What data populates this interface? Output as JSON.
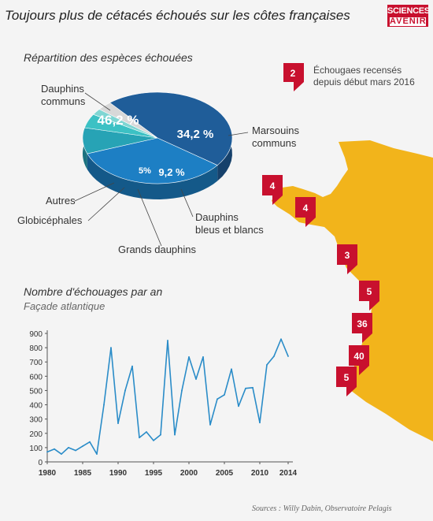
{
  "header": {
    "title": "Toujours plus de cétacés échoués sur les côtes françaises",
    "logo_line1": "SCIENCES",
    "logo_line2": "AVENIR"
  },
  "pie_section": {
    "title": "Répartition des espèces échouées"
  },
  "map_legend": {
    "count": "2",
    "line1": "Échougaes recensés",
    "line2": "depuis début mars 2016"
  },
  "map_markers": [
    {
      "value": "4"
    },
    {
      "value": "4"
    },
    {
      "value": "3"
    },
    {
      "value": "5"
    },
    {
      "value": "36"
    },
    {
      "value": "40"
    },
    {
      "value": "5"
    }
  ],
  "line_section": {
    "title": "Nombre d'échouages par an",
    "subtitle": "Façade atlantique"
  },
  "source": "Sources : Willy Dabin, Observatoire Pelagis",
  "colors": {
    "map": "#f2b41b",
    "marker": "#c8102e",
    "line": "#2a8cc8",
    "pie_dark": "#1f5d99",
    "pie_mid": "#1d7fc4",
    "pie_teal": "#27a3b5",
    "pie_turq": "#3cc1c4",
    "pie_grey": "#d8d8d8"
  },
  "chart_data": [
    {
      "type": "pie",
      "title": "Répartition des espèces échouées",
      "slices": [
        {
          "name": "Dauphins communs",
          "value": 46.2,
          "label": "46,2 %",
          "color": "#1f5d99"
        },
        {
          "name": "Marsouins communs",
          "value": 34.2,
          "label": "34,2 %",
          "color": "#1d7fc4"
        },
        {
          "name": "Dauphins bleus et blancs",
          "value": 9.2,
          "label": "9,2 %",
          "color": "#27a3b5"
        },
        {
          "name": "Grands dauphins",
          "value": 5,
          "label": "5%",
          "color": "#3cc1c4"
        },
        {
          "name": "Globicéphales",
          "value": 2.2,
          "label": "",
          "color": "#7fd6d3"
        },
        {
          "name": "Autres",
          "value": 3.2,
          "label": "",
          "color": "#d8d8d8"
        }
      ],
      "labels": {
        "dauphins_communs": [
          "Dauphins",
          "communs"
        ],
        "marsouins": [
          "Marsouins",
          "communs"
        ],
        "bleus_blancs": [
          "Dauphins",
          "bleus et blancs"
        ],
        "grands": "Grands dauphins",
        "globi": "Globicéphales",
        "autres": "Autres"
      }
    },
    {
      "type": "line",
      "title": "Nombre d'échouages par an",
      "subtitle": "Façade atlantique",
      "xlim": [
        1980,
        2014
      ],
      "ylim": [
        0,
        900
      ],
      "yticks": [
        0,
        100,
        200,
        300,
        400,
        500,
        600,
        700,
        800,
        900
      ],
      "xticks": [
        1980,
        1985,
        1990,
        1995,
        2000,
        2005,
        2010,
        2014
      ],
      "grid": false,
      "x": [
        1980,
        1981,
        1982,
        1983,
        1984,
        1985,
        1986,
        1987,
        1988,
        1989,
        1990,
        1991,
        1992,
        1993,
        1994,
        1995,
        1996,
        1997,
        1998,
        1999,
        2000,
        2001,
        2002,
        2003,
        2004,
        2005,
        2006,
        2007,
        2008,
        2009,
        2010,
        2011,
        2012,
        2013,
        2014
      ],
      "series": [
        {
          "values": [
            70,
            90,
            55,
            100,
            80,
            110,
            140,
            55,
            400,
            800,
            270,
            500,
            670,
            170,
            210,
            150,
            190,
            850,
            190,
            500,
            735,
            580,
            735,
            260,
            440,
            470,
            650,
            390,
            515,
            520,
            275,
            680,
            740,
            860,
            740
          ]
        }
      ]
    }
  ]
}
